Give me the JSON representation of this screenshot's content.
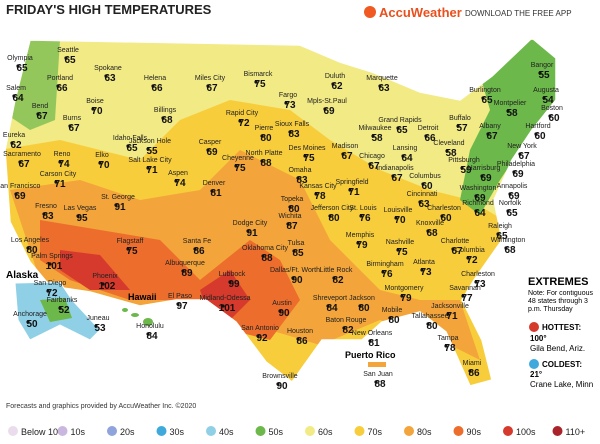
{
  "header": {
    "title": "FRIDAY'S HIGH TEMPERATURES",
    "brand": "AccuWeather",
    "app": "DOWNLOAD THE FREE APP"
  },
  "regions": {
    "alaska": "Alaska",
    "hawaii": "Hawaii",
    "puerto_rico": "Puerto Rico"
  },
  "cities": [
    {
      "name": "Seattle",
      "temp": 65
    },
    {
      "name": "Olympia",
      "temp": 65
    },
    {
      "name": "Portland",
      "temp": 66
    },
    {
      "name": "Salem",
      "temp": 64
    },
    {
      "name": "Bend",
      "temp": 67
    },
    {
      "name": "Spokane",
      "temp": 63
    },
    {
      "name": "Boise",
      "temp": 70
    },
    {
      "name": "Burns",
      "temp": 67
    },
    {
      "name": "Idaho Falls",
      "temp": 65
    },
    {
      "name": "Helena",
      "temp": 66
    },
    {
      "name": "Billings",
      "temp": 68
    },
    {
      "name": "Jackson Hole",
      "temp": 55
    },
    {
      "name": "Miles City",
      "temp": 67
    },
    {
      "name": "Bismarck",
      "temp": 75
    },
    {
      "name": "Fargo",
      "temp": 73
    },
    {
      "name": "Duluth",
      "temp": 62
    },
    {
      "name": "Marquette",
      "temp": 63
    },
    {
      "name": "Mpls-St.Paul",
      "temp": 69
    },
    {
      "name": "Rapid City",
      "temp": 72
    },
    {
      "name": "Pierre",
      "temp": 80
    },
    {
      "name": "Sioux Falls",
      "temp": 83
    },
    {
      "name": "Casper",
      "temp": 69
    },
    {
      "name": "Eureka",
      "temp": 62
    },
    {
      "name": "Sacramento",
      "temp": 67
    },
    {
      "name": "Reno",
      "temp": 74
    },
    {
      "name": "Carson City",
      "temp": 71
    },
    {
      "name": "Elko",
      "temp": 70
    },
    {
      "name": "Salt Lake City",
      "temp": 71
    },
    {
      "name": "San Francisco",
      "temp": 69
    },
    {
      "name": "Fresno",
      "temp": 83
    },
    {
      "name": "Las Vegas",
      "temp": 95
    },
    {
      "name": "St. George",
      "temp": 91
    },
    {
      "name": "Aspen",
      "temp": 74
    },
    {
      "name": "Cheyenne",
      "temp": 75
    },
    {
      "name": "North Platte",
      "temp": 88
    },
    {
      "name": "Des Moines",
      "temp": 75
    },
    {
      "name": "Omaha",
      "temp": 83
    },
    {
      "name": "Madison",
      "temp": 67
    },
    {
      "name": "Milwaukee",
      "temp": 58
    },
    {
      "name": "Chicago",
      "temp": 67
    },
    {
      "name": "Grand Rapids",
      "temp": 65
    },
    {
      "name": "Lansing",
      "temp": 64
    },
    {
      "name": "Detroit",
      "temp": 66
    },
    {
      "name": "Denver",
      "temp": 81
    },
    {
      "name": "Topeka",
      "temp": 80
    },
    {
      "name": "Kansas City",
      "temp": 78
    },
    {
      "name": "Springfield",
      "temp": 71
    },
    {
      "name": "Indianapolis",
      "temp": 67
    },
    {
      "name": "Columbus",
      "temp": 60
    },
    {
      "name": "Cleveland",
      "temp": 58
    },
    {
      "name": "Buffalo",
      "temp": 57
    },
    {
      "name": "Pittsburgh",
      "temp": 59
    },
    {
      "name": "Cincinnati",
      "temp": 63
    },
    {
      "name": "Wichita",
      "temp": 87
    },
    {
      "name": "Jefferson City",
      "temp": 80
    },
    {
      "name": "St. Louis",
      "temp": 76
    },
    {
      "name": "Louisville",
      "temp": 70
    },
    {
      "name": "Knoxville",
      "temp": 68
    },
    {
      "name": "Los Angeles",
      "temp": 80
    },
    {
      "name": "Palm Springs",
      "temp": 101
    },
    {
      "name": "Flagstaff",
      "temp": 75
    },
    {
      "name": "Santa Fe",
      "temp": 86
    },
    {
      "name": "Albuquerque",
      "temp": 89
    },
    {
      "name": "Dodge City",
      "temp": 91
    },
    {
      "name": "Tulsa",
      "temp": 85
    },
    {
      "name": "Oklahoma City",
      "temp": 88
    },
    {
      "name": "Memphis",
      "temp": 79
    },
    {
      "name": "Nashville",
      "temp": 75
    },
    {
      "name": "Charlotte",
      "temp": 67
    },
    {
      "name": "San Diego",
      "temp": 72
    },
    {
      "name": "Phoenix",
      "temp": 102
    },
    {
      "name": "Lubbock",
      "temp": 99
    },
    {
      "name": "Dallas/Ft. Worth",
      "temp": 90
    },
    {
      "name": "Little Rock",
      "temp": 82
    },
    {
      "name": "Birmingham",
      "temp": 76
    },
    {
      "name": "Atlanta",
      "temp": 73
    },
    {
      "name": "Columbia",
      "temp": 72
    },
    {
      "name": "Charleston",
      "temp": 73
    },
    {
      "name": "El Paso",
      "temp": 97
    },
    {
      "name": "Midland-Odessa",
      "temp": 101
    },
    {
      "name": "Austin",
      "temp": 90
    },
    {
      "name": "Shreveport",
      "temp": 84
    },
    {
      "name": "Jackson",
      "temp": 80
    },
    {
      "name": "Montgomery",
      "temp": 79
    },
    {
      "name": "Savannah",
      "temp": 77
    },
    {
      "name": "San Antonio",
      "temp": 92
    },
    {
      "name": "Houston",
      "temp": 86
    },
    {
      "name": "Baton Rouge",
      "temp": 82
    },
    {
      "name": "New Orleans",
      "temp": 81
    },
    {
      "name": "Mobile",
      "temp": 80
    },
    {
      "name": "Tallahassee",
      "temp": 80
    },
    {
      "name": "Jacksonville",
      "temp": 71
    },
    {
      "name": "Tampa",
      "temp": 78
    },
    {
      "name": "Miami",
      "temp": 86
    },
    {
      "name": "Brownsville",
      "temp": 90
    },
    {
      "name": "Burlington",
      "temp": 65
    },
    {
      "name": "Montpelier",
      "temp": 58
    },
    {
      "name": "Bangor",
      "temp": 55
    },
    {
      "name": "Augusta",
      "temp": 54
    },
    {
      "name": "Albany",
      "temp": 67
    },
    {
      "name": "Boston",
      "temp": 60
    },
    {
      "name": "Hartford",
      "temp": 60
    },
    {
      "name": "New York",
      "temp": 67
    },
    {
      "name": "Harrisburg",
      "temp": 69
    },
    {
      "name": "Philadelphia",
      "temp": 69
    },
    {
      "name": "Annapolis",
      "temp": 69
    },
    {
      "name": "Washington",
      "temp": 69
    },
    {
      "name": "Richmond",
      "temp": 64
    },
    {
      "name": "Norfolk",
      "temp": 65
    },
    {
      "name": "Raleigh",
      "temp": 65
    },
    {
      "name": "Charleston",
      "temp": 60
    },
    {
      "name": "Wilmington",
      "temp": 68
    },
    {
      "name": "Fairbanks",
      "temp": 52
    },
    {
      "name": "Anchorage",
      "temp": 50
    },
    {
      "name": "Juneau",
      "temp": 53
    },
    {
      "name": "Honolulu",
      "temp": 84
    },
    {
      "name": "San Juan",
      "temp": 88
    }
  ],
  "extremes": {
    "title": "EXTREMES",
    "note": "Note: For contiguous 48 states through 3 p.m. Thursday",
    "hottest_label": "HOTTEST:",
    "hottest_temp": "100°",
    "hottest_place": "Gila Bend, Ariz.",
    "coldest_label": "COLDEST:",
    "coldest_temp": "21°",
    "coldest_place": "Crane Lake, Minn"
  },
  "footer": "Forecasts and graphics provided by AccuWeather Inc. ©2020",
  "legend": [
    {
      "label": "Below 10",
      "color": "#eadcec"
    },
    {
      "label": "10s",
      "color": "#c9b7e0"
    },
    {
      "label": "20s",
      "color": "#8fa3dc"
    },
    {
      "label": "30s",
      "color": "#3fa9dc"
    },
    {
      "label": "40s",
      "color": "#8fd0e6"
    },
    {
      "label": "50s",
      "color": "#6cb84a"
    },
    {
      "label": "60s",
      "color": "#f2ea84"
    },
    {
      "label": "70s",
      "color": "#f8cd3c"
    },
    {
      "label": "80s",
      "color": "#f3a43a"
    },
    {
      "label": "90s",
      "color": "#ec6d2c"
    },
    {
      "label": "100s",
      "color": "#d63a2c"
    },
    {
      "label": "110+",
      "color": "#a9232b"
    }
  ]
}
